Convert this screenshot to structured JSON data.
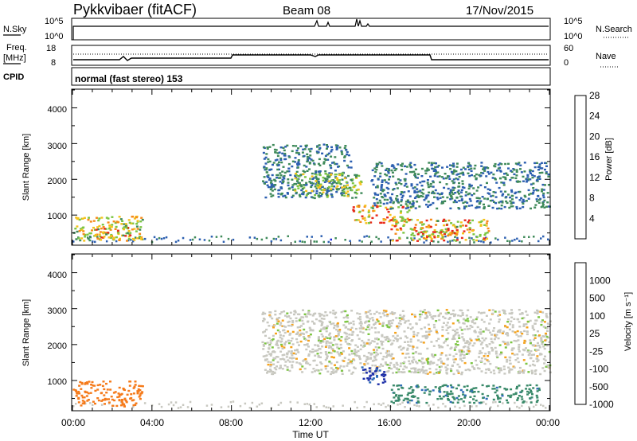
{
  "header": {
    "station": "Pykkvibaer (fitACF)",
    "beam": "Beam 08",
    "date": "17/Nov/2015"
  },
  "strip": {
    "nsky_label": "N.Sky",
    "nsky_ticks": [
      "10^5",
      "10^0"
    ],
    "nsearch_label": "N.Search",
    "nsearch_ticks": [
      "10^5",
      "10^0"
    ],
    "freq_label_1": "Freq.",
    "freq_label_2": "[MHz]",
    "freq_ticks": [
      "18",
      "8"
    ],
    "nave_label": "Nave",
    "nave_ticks": [
      "60",
      "0"
    ],
    "cpid_label": "CPID",
    "cpid_text": "normal (fast stereo) 153"
  },
  "xaxis": {
    "label": "Time UT",
    "ticks": [
      "00:00",
      "04:00",
      "08:00",
      "12:00",
      "16:00",
      "20:00",
      "00:00"
    ]
  },
  "power_panel": {
    "ylabel": "Slant Range [km]",
    "yticks": [
      "1000",
      "2000",
      "3000",
      "4000"
    ],
    "colorbar_label": "Power [dB]",
    "colorbar_ticks": [
      "4",
      "8",
      "12",
      "16",
      "20",
      "24",
      "28"
    ],
    "colors": [
      "#1f2bd6",
      "#2c5fb0",
      "#3f8a5a",
      "#7cc542",
      "#f5c21b",
      "#f58a1a",
      "#e8291b"
    ]
  },
  "velocity_panel": {
    "ylabel": "Slant Range [km]",
    "yticks": [
      "1000",
      "2000",
      "3000",
      "4000"
    ],
    "colorbar_label": "Velocity [m s⁻¹]",
    "colorbar_ticks": [
      "1000",
      "500",
      "100",
      "25",
      "-25",
      "-100",
      "-500",
      "-1000"
    ],
    "colors": [
      "#1d2fa8",
      "#2f6db8",
      "#3a8a6a",
      "#7cc542",
      "#c8c8c0",
      "#f5a21b",
      "#f57a1a",
      "#e8291b"
    ]
  },
  "chart_data": [
    {
      "type": "heatmap",
      "title": "Power",
      "xlabel": "Time UT",
      "ylabel": "Slant Range [km]",
      "xlim": [
        0,
        24
      ],
      "ylim": [
        180,
        4500
      ],
      "colorbar": {
        "label": "Power [dB]",
        "range": [
          0,
          30
        ]
      },
      "regions": [
        {
          "t": [
            0,
            3.5
          ],
          "range": [
            300,
            1000
          ],
          "value": 24
        },
        {
          "t": [
            1,
            3
          ],
          "range": [
            400,
            700
          ],
          "value": 28
        },
        {
          "t": [
            9.5,
            14
          ],
          "range": [
            1500,
            3000
          ],
          "value": 12
        },
        {
          "t": [
            11,
            14.5
          ],
          "range": [
            1500,
            2200
          ],
          "value": 20
        },
        {
          "t": [
            14,
            17
          ],
          "range": [
            800,
            1300
          ],
          "value": 28
        },
        {
          "t": [
            16,
            21
          ],
          "range": [
            300,
            900
          ],
          "value": 28
        },
        {
          "t": [
            17.5,
            19.5
          ],
          "range": [
            400,
            600
          ],
          "value": 28
        },
        {
          "t": [
            15,
            24
          ],
          "range": [
            1200,
            2500
          ],
          "value": 12
        }
      ]
    },
    {
      "type": "heatmap",
      "title": "Velocity",
      "xlabel": "Time UT",
      "ylabel": "Slant Range [km]",
      "xlim": [
        0,
        24
      ],
      "ylim": [
        180,
        4500
      ],
      "colorbar": {
        "label": "Velocity [m s⁻¹]",
        "range": [
          -1000,
          1000
        ]
      },
      "regions": [
        {
          "t": [
            0,
            3.5
          ],
          "range": [
            300,
            1000
          ],
          "value": -300
        },
        {
          "t": [
            9.5,
            24
          ],
          "range": [
            1200,
            3000
          ],
          "value": 0
        },
        {
          "t": [
            14.5,
            15.7
          ],
          "range": [
            900,
            1400
          ],
          "value": 800
        },
        {
          "t": [
            16,
            23.5
          ],
          "range": [
            400,
            900
          ],
          "value": 200
        }
      ]
    }
  ]
}
